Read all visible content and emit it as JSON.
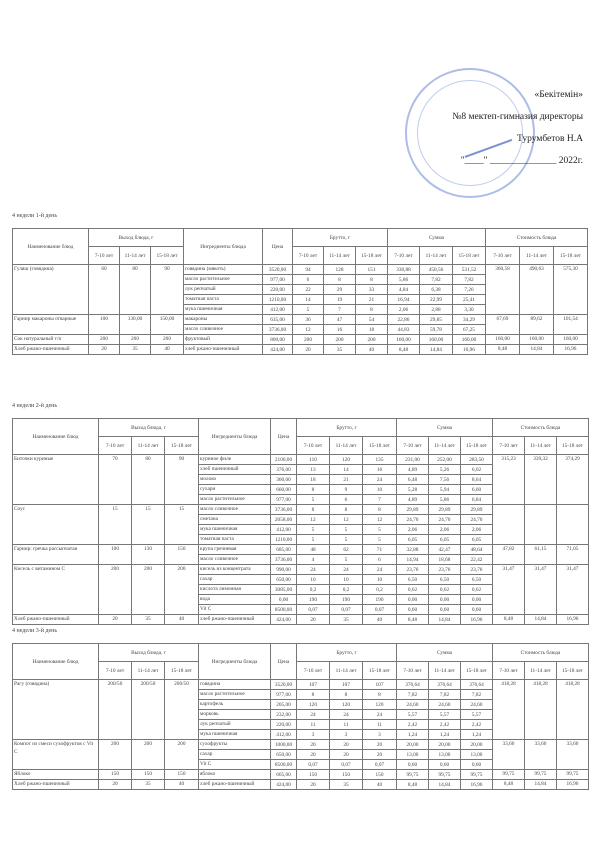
{
  "approval": {
    "line1": "«Бекітемін»",
    "line2": "№8 мектеп-гимназия директоры",
    "line3": "Турумбетов Н.А",
    "line4": "\"____\" ______________ 2022г."
  },
  "headers": {
    "name": "Наименование блюд",
    "yield": "Выход блюда, г",
    "ingredients": "Ингредиенты блюда",
    "price": "Цена",
    "brutto": "Брутто, г",
    "sum": "Сумма",
    "cost": "Стоимость блюда",
    "ages": [
      "7-10 лет",
      "11-14 лет",
      "15-18 лет"
    ]
  },
  "days": [
    {
      "title": "4 недели 1-й день",
      "dishes": [
        {
          "name": "Гуляш (говядина)",
          "yield": [
            "60",
            "80",
            "90"
          ],
          "cost": [
            "360,58",
            "490,63",
            "575,30"
          ],
          "ingredients": [
            {
              "name": "говядина (мякоть)",
              "price": "3520,00",
              "brutto": [
                "94",
                "128",
                "151"
              ],
              "sum": [
                "330,88",
                "450,56",
                "531,52"
              ]
            },
            {
              "name": "масло растительное",
              "price": "977,00",
              "brutto": [
                "6",
                "8",
                "8"
              ],
              "sum": [
                "5,86",
                "7,82",
                "7,82"
              ]
            },
            {
              "name": "лук репчатый",
              "price": "220,00",
              "brutto": [
                "22",
                "29",
                "33"
              ],
              "sum": [
                "4,84",
                "6,38",
                "7,26"
              ]
            },
            {
              "name": "томатная паста",
              "price": "1210,00",
              "brutto": [
                "14",
                "19",
                "21"
              ],
              "sum": [
                "16,94",
                "22,99",
                "25,41"
              ]
            },
            {
              "name": "мука пшеничная",
              "price": "412,00",
              "brutto": [
                "5",
                "7",
                "8"
              ],
              "sum": [
                "2,06",
                "2,88",
                "3,30"
              ]
            }
          ]
        },
        {
          "name": "Гарнир макароны отварные",
          "yield": [
            "100",
            "130,00",
            "150,00"
          ],
          "cost": [
            "67,69",
            "89,62",
            "101,54"
          ],
          "ingredients": [
            {
              "name": "макароны",
              "price": "635,00",
              "brutto": [
                "36",
                "47",
                "54"
              ],
              "sum": [
                "22,86",
                "29,85",
                "34,29"
              ]
            },
            {
              "name": "масло сливочное",
              "price": "3736,00",
              "brutto": [
                "12",
                "16",
                "18"
              ],
              "sum": [
                "44,83",
                "59,78",
                "67,25"
              ]
            }
          ]
        },
        {
          "name": "Сок натуральный т/п",
          "yield": [
            "200",
            "200",
            "200"
          ],
          "cost": [
            "160,00",
            "160,00",
            "160,00"
          ],
          "ingredients": [
            {
              "name": "фруктовый",
              "price": "800,00",
              "brutto": [
                "200",
                "200",
                "200"
              ],
              "sum": [
                "160,00",
                "160,00",
                "160,00"
              ]
            }
          ]
        },
        {
          "name": "Хлеб ржано-пшеничный",
          "yield": [
            "20",
            "35",
            "40"
          ],
          "cost": [
            "8,48",
            "14,84",
            "16,96"
          ],
          "ingredients": [
            {
              "name": "хлеб ржано-пшеничный",
              "price": "424,00",
              "brutto": [
                "20",
                "35",
                "40"
              ],
              "sum": [
                "8,48",
                "14,84",
                "16,96"
              ]
            }
          ]
        }
      ]
    },
    {
      "title": "4 недели 2-й день",
      "dishes": [
        {
          "name": "Биточки куриные",
          "yield": [
            "70",
            "80",
            "90"
          ],
          "cost": [
            "315,23",
            "339,32",
            "374,29"
          ],
          "ingredients": [
            {
              "name": "куриное филе",
              "price": "2100,00",
              "brutto": [
                "110",
                "120",
                "135"
              ],
              "sum": [
                "231,00",
                "252,00",
                "283,50"
              ]
            },
            {
              "name": "хлеб пшеничный",
              "price": "376,00",
              "brutto": [
                "13",
                "14",
                "16"
              ],
              "sum": [
                "4,89",
                "5,26",
                "6,02"
              ]
            },
            {
              "name": "молоко",
              "price": "360,00",
              "brutto": [
                "18",
                "21",
                "24"
              ],
              "sum": [
                "6,48",
                "7,56",
                "8,64"
              ]
            },
            {
              "name": "сухари",
              "price": "660,00",
              "brutto": [
                "8",
                "9",
                "10"
              ],
              "sum": [
                "5,28",
                "5,94",
                "6,60"
              ]
            },
            {
              "name": "масло растительное",
              "price": "977,00",
              "brutto": [
                "5",
                "6",
                "7"
              ],
              "sum": [
                "4,89",
                "5,86",
                "6,84"
              ]
            }
          ]
        },
        {
          "name": "Соус",
          "yield": [
            "15",
            "15",
            "15"
          ],
          "cost": [
            "",
            "",
            ""
          ],
          "ingredients": [
            {
              "name": "масло сливочное",
              "price": "3736,00",
              "brutto": [
                "8",
                "8",
                "8"
              ],
              "sum": [
                "29,89",
                "29,89",
                "29,89"
              ]
            },
            {
              "name": "сметана",
              "price": "2058,00",
              "brutto": [
                "12",
                "12",
                "12"
              ],
              "sum": [
                "24,70",
                "24,70",
                "24,70"
              ]
            },
            {
              "name": "мука пшеничная",
              "price": "412,00",
              "brutto": [
                "5",
                "5",
                "5"
              ],
              "sum": [
                "2,06",
                "2,06",
                "2,06"
              ]
            },
            {
              "name": "томатная паста",
              "price": "1210,00",
              "brutto": [
                "5",
                "5",
                "5"
              ],
              "sum": [
                "6,05",
                "6,05",
                "6,05"
              ]
            }
          ]
        },
        {
          "name": "Гарнир: гречка рассыпчатая",
          "yield": [
            "100",
            "130",
            "150"
          ],
          "cost": [
            "47,82",
            "61,15",
            "71,05"
          ],
          "ingredients": [
            {
              "name": "крупа гречневая",
              "price": "685,00",
              "brutto": [
                "48",
                "62",
                "71"
              ],
              "sum": [
                "32,88",
                "42,47",
                "48,64"
              ]
            },
            {
              "name": "масло сливочное",
              "price": "3736,00",
              "brutto": [
                "4",
                "5",
                "6"
              ],
              "sum": [
                "14,94",
                "18,68",
                "22,42"
              ]
            }
          ]
        },
        {
          "name": "Кисель с витамином С",
          "yield": [
            "200",
            "200",
            "200"
          ],
          "cost": [
            "31,47",
            "31,47",
            "31,47"
          ],
          "ingredients": [
            {
              "name": "кисель из концентрата",
              "price": "990,00",
              "brutto": [
                "24",
                "24",
                "24"
              ],
              "sum": [
                "23,76",
                "23,76",
                "23,76"
              ]
            },
            {
              "name": "сахар",
              "price": "650,00",
              "brutto": [
                "10",
                "10",
                "10"
              ],
              "sum": [
                "6,50",
                "6,50",
                "6,50"
              ]
            },
            {
              "name": "кислота лимонная",
              "price": "3085,00",
              "brutto": [
                "0,2",
                "0,2",
                "0,2"
              ],
              "sum": [
                "0,62",
                "0,62",
                "0,62"
              ]
            },
            {
              "name": "вода",
              "price": "0,00",
              "brutto": [
                "190",
                "190",
                "190"
              ],
              "sum": [
                "0,00",
                "0,00",
                "0,00"
              ]
            },
            {
              "name": "Vit C",
              "price": "8500,00",
              "brutto": [
                "0,07",
                "0,07",
                "0,07"
              ],
              "sum": [
                "0,60",
                "0,60",
                "0,60"
              ]
            }
          ]
        },
        {
          "name": "Хлеб ржано-пшеничный",
          "yield": [
            "20",
            "35",
            "40"
          ],
          "cost": [
            "8,48",
            "14,84",
            "16,96"
          ],
          "ingredients": [
            {
              "name": "хлеб ржано-пшеничный",
              "price": "424,00",
              "brutto": [
                "20",
                "35",
                "40"
              ],
              "sum": [
                "8,48",
                "14,84",
                "16,96"
              ]
            }
          ]
        }
      ]
    },
    {
      "title": "4 недели 3-й день",
      "dishes": [
        {
          "name": "Рагу (говядина)",
          "yield": [
            "200/50",
            "200/50",
            "200/50"
          ],
          "cost": [
            "418,28",
            "418,28",
            "418,28"
          ],
          "ingredients": [
            {
              "name": "говядина",
              "price": "3520,00",
              "brutto": [
                "107",
                "107",
                "107"
              ],
              "sum": [
                "376,64",
                "376,64",
                "376,64"
              ]
            },
            {
              "name": "масло растительное",
              "price": "977,00",
              "brutto": [
                "8",
                "8",
                "8"
              ],
              "sum": [
                "7,82",
                "7,82",
                "7,82"
              ]
            },
            {
              "name": "картофель",
              "price": "205,00",
              "brutto": [
                "120",
                "120",
                "120"
              ],
              "sum": [
                "24,60",
                "24,60",
                "24,60"
              ]
            },
            {
              "name": "морковь",
              "price": "232,00",
              "brutto": [
                "24",
                "24",
                "24"
              ],
              "sum": [
                "5,57",
                "5,57",
                "5,57"
              ]
            },
            {
              "name": "лук репчатый",
              "price": "220,00",
              "brutto": [
                "11",
                "11",
                "11"
              ],
              "sum": [
                "2,42",
                "2,42",
                "2,42"
              ]
            },
            {
              "name": "мука пшеничная",
              "price": "412,00",
              "brutto": [
                "3",
                "3",
                "3"
              ],
              "sum": [
                "1,24",
                "1,24",
                "1,24"
              ]
            }
          ]
        },
        {
          "name": "Компот из смеси сухофруктов с Vit C",
          "yield": [
            "200",
            "200",
            "200"
          ],
          "cost": [
            "33,60",
            "33,60",
            "33,60"
          ],
          "ingredients": [
            {
              "name": "сухофрукты",
              "price": "1000,00",
              "brutto": [
                "20",
                "20",
                "20"
              ],
              "sum": [
                "20,00",
                "20,00",
                "20,00"
              ]
            },
            {
              "name": "сахар",
              "price": "650,00",
              "brutto": [
                "20",
                "20",
                "20"
              ],
              "sum": [
                "13,00",
                "13,00",
                "13,00"
              ]
            },
            {
              "name": "Vit C",
              "price": "8500,00",
              "brutto": [
                "0,07",
                "0,07",
                "0,07"
              ],
              "sum": [
                "0,60",
                "0,60",
                "0,60"
              ]
            }
          ]
        },
        {
          "name": "Яблоко",
          "yield": [
            "150",
            "150",
            "150"
          ],
          "cost": [
            "99,75",
            "99,75",
            "99,75"
          ],
          "ingredients": [
            {
              "name": "яблоко",
              "price": "665,00",
              "brutto": [
                "150",
                "150",
                "150"
              ],
              "sum": [
                "99,75",
                "99,75",
                "99,75"
              ]
            }
          ]
        },
        {
          "name": "Хлеб ржано-пшеничный",
          "yield": [
            "20",
            "35",
            "40"
          ],
          "cost": [
            "8,48",
            "14,84",
            "16,96"
          ],
          "ingredients": [
            {
              "name": "хлеб ржано-пшеничный",
              "price": "424,00",
              "brutto": [
                "20",
                "35",
                "40"
              ],
              "sum": [
                "8,48",
                "14,84",
                "16,96"
              ]
            }
          ]
        }
      ]
    }
  ]
}
